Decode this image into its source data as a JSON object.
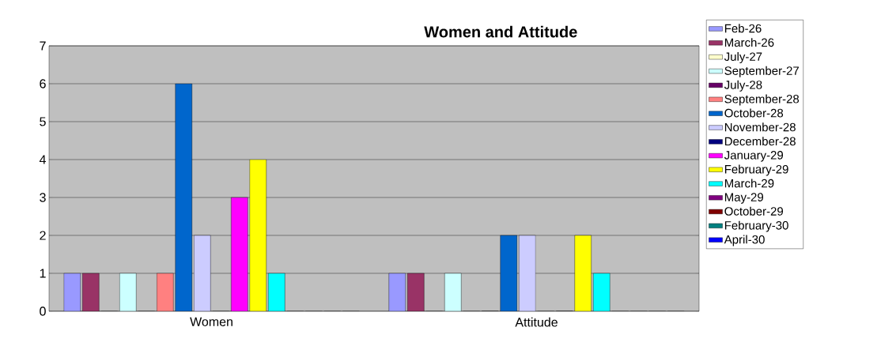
{
  "chart_data": {
    "type": "bar",
    "title": "Women and Attitude",
    "categories": [
      "Women",
      "Attitude"
    ],
    "series": [
      {
        "name": "Feb-26",
        "color": "#9999ff",
        "values": [
          1,
          1
        ]
      },
      {
        "name": "March-26",
        "color": "#993366",
        "values": [
          1,
          1
        ]
      },
      {
        "name": "July-27",
        "color": "#ffffcc",
        "values": [
          0,
          0
        ]
      },
      {
        "name": "September-27",
        "color": "#ccffff",
        "values": [
          1,
          1
        ]
      },
      {
        "name": "July-28",
        "color": "#660066",
        "values": [
          0,
          0
        ]
      },
      {
        "name": "September-28",
        "color": "#ff8080",
        "values": [
          1,
          0
        ]
      },
      {
        "name": "October-28",
        "color": "#0066cc",
        "values": [
          6,
          2
        ]
      },
      {
        "name": "November-28",
        "color": "#ccccff",
        "values": [
          2,
          2
        ]
      },
      {
        "name": "December-28",
        "color": "#000080",
        "values": [
          0,
          0
        ]
      },
      {
        "name": "January-29",
        "color": "#ff00ff",
        "values": [
          3,
          0
        ]
      },
      {
        "name": "February-29",
        "color": "#ffff00",
        "values": [
          4,
          2
        ]
      },
      {
        "name": "March-29",
        "color": "#00ffff",
        "values": [
          1,
          1
        ]
      },
      {
        "name": "May-29",
        "color": "#800080",
        "values": [
          0,
          0
        ]
      },
      {
        "name": "October-29",
        "color": "#800000",
        "values": [
          0,
          0
        ]
      },
      {
        "name": "February-30",
        "color": "#008080",
        "values": [
          0,
          0
        ]
      },
      {
        "name": "April-30",
        "color": "#0000ff",
        "values": [
          0,
          0
        ]
      }
    ],
    "ylim": [
      0,
      7
    ],
    "yticks": [
      0,
      1,
      2,
      3,
      4,
      5,
      6,
      7
    ],
    "grid": "y",
    "legend": "right"
  }
}
